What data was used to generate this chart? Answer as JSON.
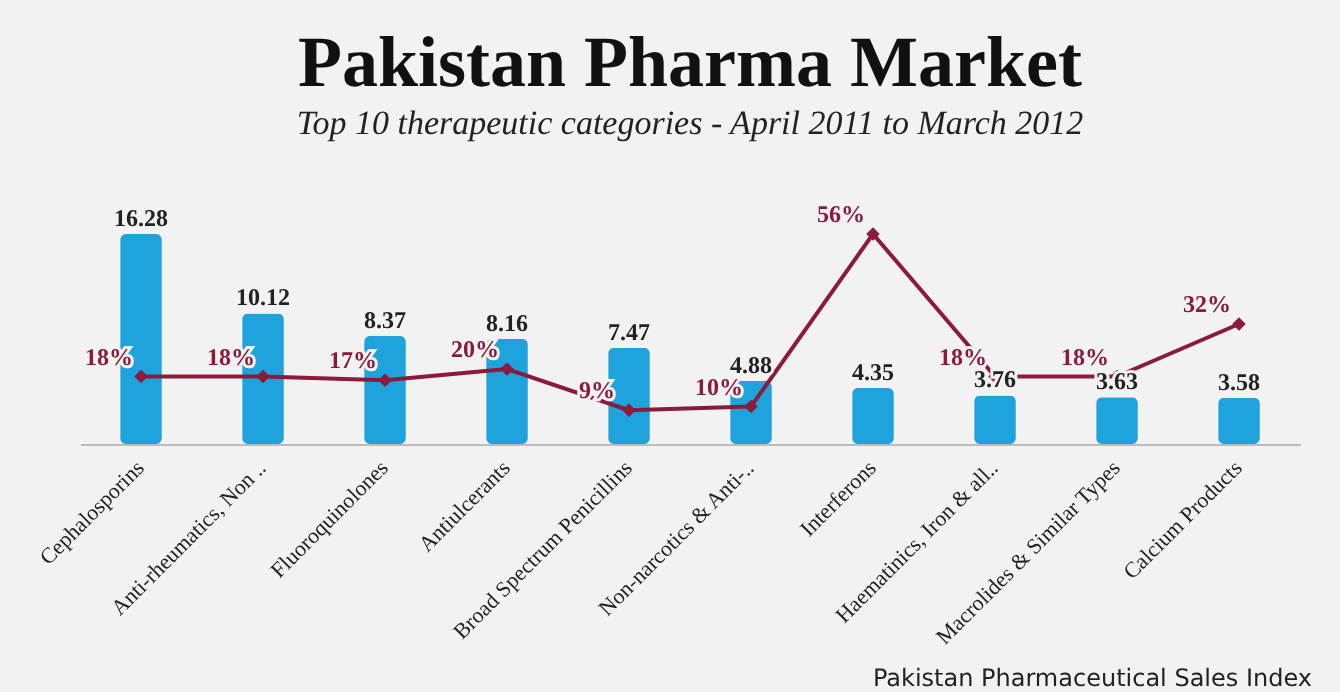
{
  "chart_data": {
    "type": "bar",
    "title": "Pakistan Pharma Market",
    "subtitle": "Top 10 therapeutic categories - April 2011 to March 2012",
    "categories": [
      "Cephalosporins",
      "Anti-rheumatics, Non ..",
      "Fluoroquinolones",
      "Antiulcerants",
      "Broad Spectrum Penicillins",
      "Non-narcotics & Anti-..",
      "Interferons",
      "Haematinics, Iron & all..",
      "Macrolides & Similar Types",
      "Calcium Products"
    ],
    "series": [
      {
        "color": "#1fa3dc",
        "values": [
          16.28,
          10.12,
          8.37,
          8.16,
          7.47,
          4.88,
          4.35,
          3.76,
          3.63,
          3.58
        ]
      },
      {
        "type": "line",
        "axis": "y2",
        "color": "#8b1a3c",
        "values": [
          18,
          18,
          17,
          20,
          9,
          10,
          56,
          18,
          18,
          32
        ],
        "value_labels": [
          "18%",
          "18%",
          "17%",
          "20%",
          "9%",
          "10%",
          "56%",
          "18%",
          "18%",
          "32%"
        ]
      }
    ],
    "data_labels": true,
    "marker": "diamond",
    "annotations": [
      "Pakistan Pharmaceutical Sales Index"
    ]
  }
}
